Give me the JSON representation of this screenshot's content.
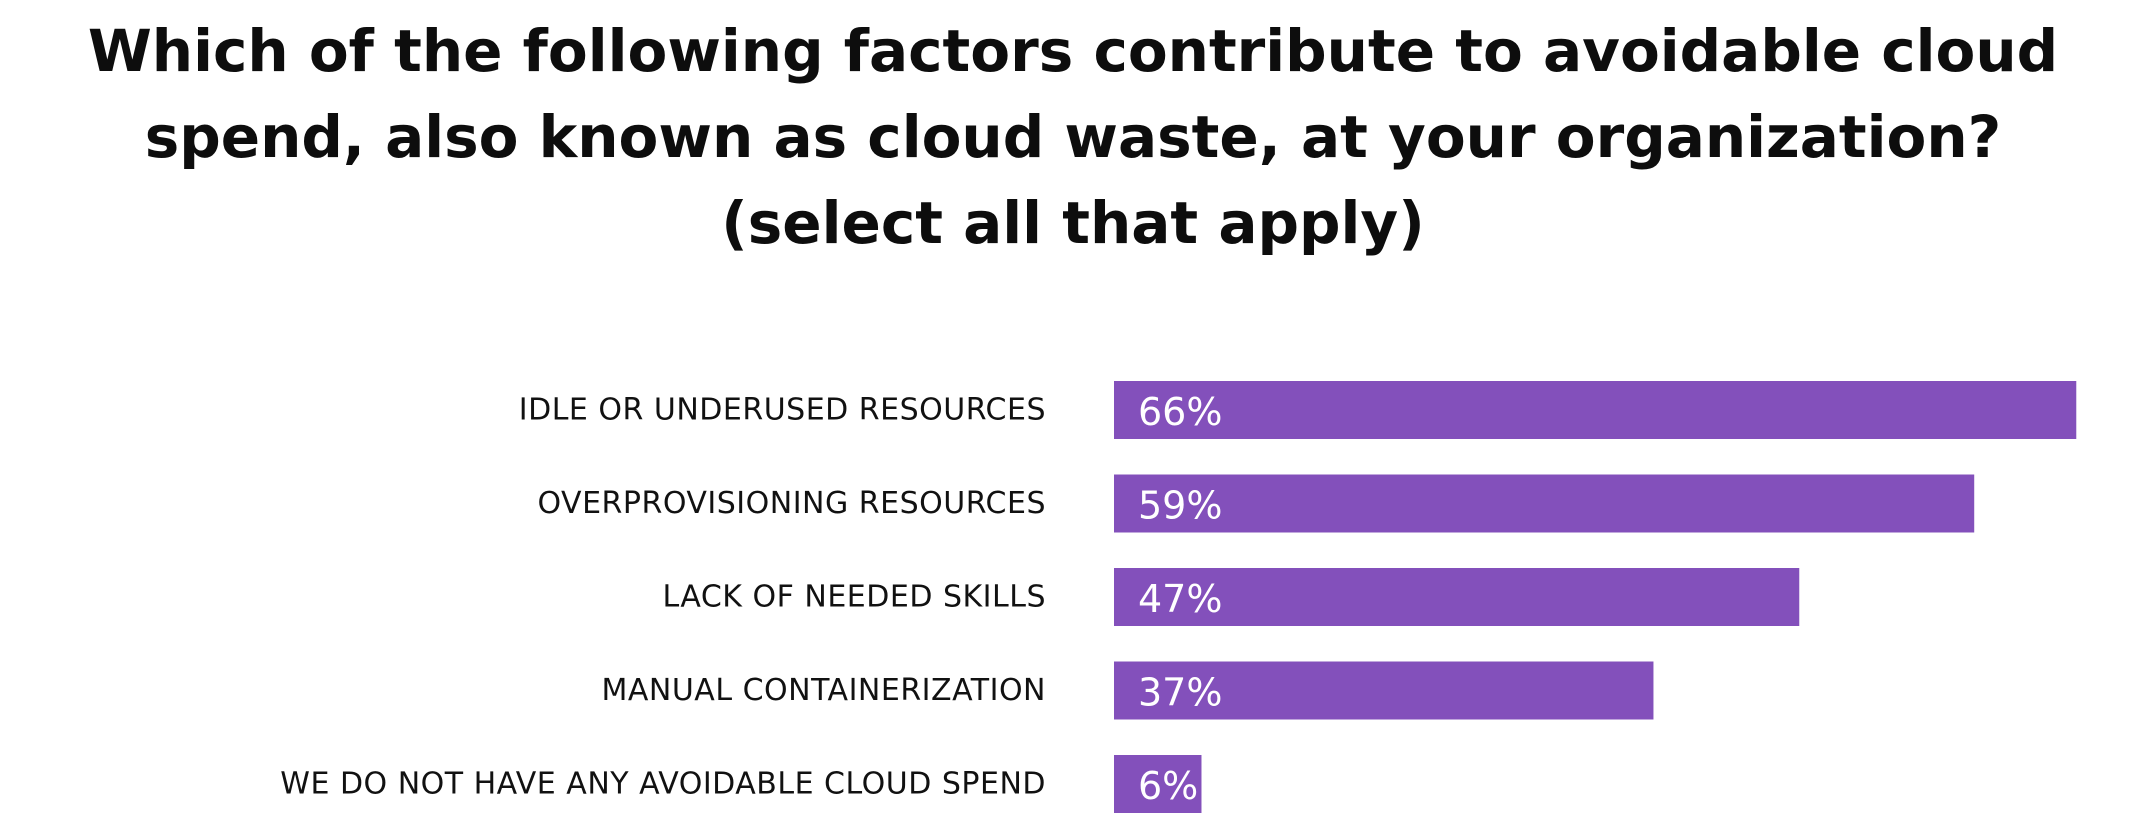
{
  "title": "Which of the following factors contribute to avoidable cloud spend, also known as cloud waste, at your organization? (select all that apply)",
  "bar_color": "#8350bb",
  "chart_data": {
    "type": "bar",
    "orientation": "horizontal",
    "title": "Which of the following factors contribute to avoidable cloud spend, also known as cloud waste, at your organization? (select all that apply)",
    "categories": [
      "IDLE OR UNDERUSED RESOURCES",
      "OVERPROVISIONING RESOURCES",
      "LACK OF NEEDED SKILLS",
      "MANUAL CONTAINERIZATION",
      "WE DO NOT HAVE ANY AVOIDABLE CLOUD SPEND"
    ],
    "values": [
      66,
      59,
      47,
      37,
      6
    ],
    "value_labels": [
      "66%",
      "59%",
      "47%",
      "37%",
      "6%"
    ],
    "unit": "%",
    "xlabel": "",
    "ylabel": "",
    "grid": false
  }
}
